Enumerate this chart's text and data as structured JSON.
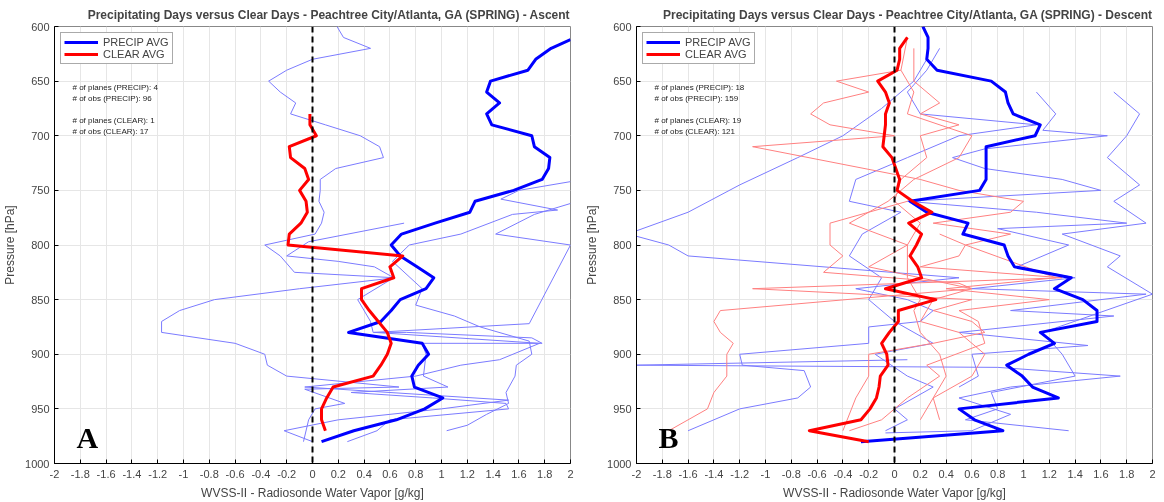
{
  "chart_data": [
    {
      "type": "line",
      "title": "Precipitating Days versus Clear Days - Peachtree City/Atlanta, GA (SPRING) - Ascent",
      "xlabel": "WVSS-II - Radiosonde Water Vapor [g/kg]",
      "ylabel": "Pressure [hPa]",
      "xlim": [
        -2,
        2
      ],
      "xticks": [
        -2,
        -1.8,
        -1.6,
        -1.4,
        -1.2,
        -1,
        -0.8,
        -0.6,
        -0.4,
        -0.2,
        0,
        0.2,
        0.4,
        0.6,
        0.8,
        1,
        1.2,
        1.4,
        1.6,
        1.8,
        2
      ],
      "ylim": [
        1000,
        600
      ],
      "yticks": [
        600,
        650,
        700,
        750,
        800,
        850,
        900,
        950,
        1000
      ],
      "grid": true,
      "legend": "top left",
      "line_style": "solid",
      "marker": "none",
      "ref_lines": [
        {
          "axis": "x",
          "value": 0,
          "color": "#000000",
          "line_style": "dashed"
        }
      ],
      "annotations": [
        "# of planes (PRECIP): 4",
        "# of obs (PRECIP): 96",
        "# of planes (CLEAR): 1",
        "# of obs (CLEAR): 17",
        "A"
      ],
      "series": [
        {
          "color": "#7b7bff",
          "x": [
            0.19,
            0.24,
            0.45,
            0,
            -0.2,
            -0.34,
            -0.25,
            -0.13,
            -0.17,
            0.1,
            0.37,
            0.52,
            0.55,
            0.18,
            0.06,
            0.06,
            0.05,
            0.09,
            0.07,
            0.02,
            -0.37,
            -0.25,
            -0.14,
            0.64,
            -0.1,
            -0.76,
            -1.03,
            -1.17,
            -1.17,
            -0.6,
            -0.37,
            -0.35,
            -0.2,
            0.67,
            -0.06,
            0.25,
            0.02,
            -0.03,
            -0.07
          ],
          "values": [
            600,
            610,
            620,
            630,
            640,
            650,
            660,
            670,
            680,
            690,
            700,
            710,
            720,
            730,
            740,
            750,
            760,
            770,
            780,
            790,
            800,
            810,
            825,
            830,
            840,
            850,
            860,
            870,
            880,
            890,
            900,
            910,
            920,
            930,
            932,
            945,
            950,
            960,
            980
          ]
        },
        {
          "color": "#7b7bff",
          "x": [
            0.71,
            -0.03,
            -0.2,
            0.2,
            0.48,
            0.63,
            0.35,
            0.45,
            0.47,
            0.73,
            1.7,
            1.78,
            0.85,
            0.88,
            0.86,
            1.05,
            0.3,
            0.93,
            1.5,
            1.52,
            0.6,
            0.5,
            0.27
          ],
          "values": [
            780,
            797,
            810,
            815,
            820,
            830,
            850,
            870,
            880,
            880,
            885,
            890,
            890,
            900,
            920,
            930,
            935,
            940,
            945,
            950,
            960,
            970,
            980
          ]
        },
        {
          "color": "#7b7bff",
          "x": [
            2,
            1.6,
            1.46,
            1.9,
            1.55,
            1.15,
            0.75,
            0.62,
            0.85,
            0.8,
            1.1,
            1.3,
            1.68,
            1.7,
            1.58,
            1.57,
            1.5,
            1.52,
            1.35,
            1.2,
            1.04
          ],
          "values": [
            742,
            750,
            758,
            768,
            772,
            790,
            800,
            815,
            840,
            855,
            865,
            875,
            888,
            900,
            910,
            920,
            935,
            945,
            955,
            965,
            970
          ]
        },
        {
          "color": "#7b7bff",
          "x": [
            2,
            1.72,
            1.42,
            2,
            1.68,
            0.48,
            1.76,
            1.45,
            1.15,
            0.8,
            -0.06,
            1.52,
            1.0,
            0.2,
            -0.22,
            0
          ],
          "values": [
            762,
            772,
            790,
            800,
            872,
            880,
            890,
            905,
            910,
            920,
            930,
            942,
            950,
            960,
            970,
            980
          ]
        },
        {
          "name": "PRECIP AVG",
          "color": "#0000ff",
          "x": [
            2,
            1.85,
            1.73,
            1.67,
            1.38,
            1.35,
            1.45,
            1.35,
            1.39,
            1.7,
            1.72,
            1.84,
            1.83,
            1.78,
            1.56,
            1.26,
            1.22,
            0.95,
            0.69,
            0.61,
            0.68,
            0.81,
            0.94,
            0.88,
            0.68,
            0.61,
            0.53,
            0.28,
            0.85,
            0.9,
            0.82,
            0.77,
            0.79,
            1.01,
            0.87,
            0.65,
            0.32,
            0.07
          ],
          "values": [
            612,
            620,
            630,
            640,
            650,
            660,
            670,
            680,
            690,
            700,
            710,
            720,
            730,
            740,
            750,
            760,
            770,
            780,
            790,
            800,
            810,
            820,
            830,
            840,
            850,
            860,
            870,
            880,
            890,
            900,
            910,
            920,
            930,
            940,
            950,
            960,
            970,
            980
          ]
        },
        {
          "name": "CLEAR AVG",
          "color": "#ff0000",
          "x": [
            -0.02,
            -0.02,
            0.03,
            -0.18,
            -0.17,
            -0.06,
            -0.03,
            -0.1,
            -0.05,
            -0.04,
            -0.09,
            -0.18,
            -0.19,
            0.7,
            0.6,
            0.63,
            0.38,
            0.38,
            0.44,
            0.51,
            0.58,
            0.61,
            0.58,
            0.53,
            0.47,
            0.16,
            0.11,
            0.07,
            0.07,
            0.1
          ],
          "values": [
            680,
            690,
            700,
            710,
            720,
            730,
            740,
            750,
            760,
            770,
            780,
            790,
            800,
            810,
            820,
            830,
            840,
            850,
            860,
            870,
            880,
            890,
            900,
            910,
            920,
            930,
            940,
            950,
            960,
            970
          ]
        }
      ]
    },
    {
      "type": "line",
      "title": "Precipitating Days versus Clear Days - Peachtree City/Atlanta, GA (SPRING) - Descent",
      "xlabel": "WVSS-II - Radiosonde Water Vapor [g/kg]",
      "ylabel": "Pressure [hPa]",
      "xlim": [
        -2,
        2
      ],
      "xticks": [
        -2,
        -1.8,
        -1.6,
        -1.4,
        -1.2,
        -1,
        -0.8,
        -0.6,
        -0.4,
        -0.2,
        0,
        0.2,
        0.4,
        0.6,
        0.8,
        1,
        1.2,
        1.4,
        1.6,
        1.8,
        2
      ],
      "ylim": [
        1000,
        600
      ],
      "yticks": [
        600,
        650,
        700,
        750,
        800,
        850,
        900,
        950,
        1000
      ],
      "grid": true,
      "legend": "top left",
      "line_style": "solid",
      "marker": "none",
      "ref_lines": [
        {
          "axis": "x",
          "value": 0,
          "color": "#000000",
          "line_style": "dashed"
        }
      ],
      "annotations": [
        "# of planes (PRECIP): 18",
        "# of obs (PRECIP): 159",
        "# of planes (CLEAR): 19",
        "# of obs (CLEAR): 121",
        "B"
      ],
      "series": [
        {
          "color": "#7b7bff",
          "x": [
            0.25,
            0.15,
            -0.1,
            -0.4,
            -0.75,
            -1.2,
            -1.6,
            -2
          ],
          "values": [
            630,
            650,
            675,
            700,
            720,
            745,
            770,
            787
          ]
        },
        {
          "color": "#7b7bff",
          "x": [
            -2,
            -1.75,
            -1.6,
            0.5,
            -0.3,
            0.1,
            0.3,
            0.2,
            -0.2,
            -0.2,
            -1.2,
            -1.18,
            -0.7,
            -0.65,
            -0.75,
            -1.2,
            -1.6
          ],
          "values": [
            792,
            800,
            810,
            830,
            840,
            850,
            860,
            870,
            875,
            890,
            900,
            910,
            915,
            930,
            940,
            950,
            970
          ]
        },
        {
          "color": "#7b7bff",
          "x": [
            0.1,
            -2,
            0.8,
            1.75,
            0.9,
            0.5,
            0.9,
            0.7,
            0.6,
            -0.07
          ],
          "values": [
            905,
            910,
            912,
            920,
            930,
            940,
            955,
            965,
            970,
            972
          ]
        },
        {
          "color": "#7b7bff",
          "x": [
            1.1,
            1.25,
            1.15,
            1.65,
            0.7,
            0.45,
            0.7,
            1.3,
            1.6,
            0.1,
            1.1,
            1.8,
            0.8,
            1.35,
            0.95,
            1.4,
            0.6,
            1.95,
            0.9,
            1.7,
            0.5,
            1.5,
            0.6,
            0.65,
            0.5
          ],
          "values": [
            660,
            680,
            695,
            700,
            712,
            720,
            730,
            740,
            750,
            760,
            770,
            780,
            785,
            800,
            820,
            830,
            840,
            845,
            860,
            865,
            880,
            892,
            900,
            920,
            930
          ]
        },
        {
          "color": "#7b7bff",
          "x": [
            1.7,
            1.9,
            1.8,
            1.65,
            1.9,
            1.7,
            1.95,
            1.3,
            1.75,
            1.65,
            2,
            1.15,
            1.3,
            1.4,
            0.75,
            0.8,
            0.55,
            1.35
          ],
          "values": [
            660,
            680,
            700,
            720,
            745,
            760,
            780,
            790,
            810,
            820,
            845,
            880,
            900,
            920,
            935,
            950,
            960,
            970
          ]
        },
        {
          "color": "#7b7bff",
          "x": [
            0.35,
            0.25,
            0.1,
            0.2,
            1.1,
            0.5,
            0.1,
            -0.3,
            -0.35,
            0.05,
            -0.25,
            -0.35,
            -0.1,
            -0.2,
            0,
            0.3,
            -0.15,
            0.1,
            0.3,
            0,
            0.1,
            -0.07
          ],
          "values": [
            620,
            640,
            660,
            680,
            690,
            700,
            720,
            740,
            760,
            770,
            790,
            810,
            830,
            850,
            870,
            890,
            900,
            920,
            930,
            950,
            960,
            970
          ]
        },
        {
          "color": "#ff8080",
          "x": [
            0.05,
            -0.45,
            -0.2,
            -0.55,
            -0.65,
            -0.5,
            0,
            -1.1,
            0.2,
            0.5,
            1,
            0.9,
            0.3,
            0.9,
            0.55,
            0.5,
            0.2,
            1.3,
            -1.1,
            0.6,
            0.3,
            0.6,
            0.7,
            0.3,
            -0.2,
            -0.2,
            -0.3,
            -0.4
          ],
          "values": [
            640,
            650,
            660,
            670,
            680,
            690,
            700,
            710,
            740,
            750,
            760,
            770,
            780,
            790,
            800,
            810,
            820,
            830,
            840,
            850,
            860,
            870,
            880,
            890,
            900,
            920,
            940,
            970
          ]
        },
        {
          "color": "#ff8080",
          "x": [
            0.1,
            -0.5,
            -0.5,
            -0.4,
            -0.55,
            0.5,
            0.6,
            -1.35,
            -1.4,
            -1.35,
            -1.25,
            -1.3,
            -1.3,
            -1.4,
            -1.45,
            -1.6,
            -1.75
          ],
          "values": [
            760,
            780,
            800,
            810,
            825,
            835,
            840,
            860,
            870,
            880,
            890,
            900,
            920,
            935,
            950,
            960,
            970
          ]
        },
        {
          "color": "#ff8080",
          "x": [
            0.15,
            0.15,
            0.35,
            0.2,
            0.5,
            0.2,
            0.25,
            0.05,
            0,
            0.2,
            0.1,
            0.1,
            0.2,
            0.15,
            0.2,
            0.35,
            0.4,
            0.3,
            0.35
          ],
          "values": [
            620,
            650,
            670,
            680,
            690,
            700,
            720,
            740,
            760,
            780,
            800,
            830,
            850,
            860,
            880,
            900,
            920,
            940,
            960
          ]
        },
        {
          "color": "#ff8080",
          "x": [
            0.1,
            0.05,
            0.15,
            0.1,
            0.6,
            0.5,
            0.15,
            -0.05,
            -0.35,
            0.1,
            -0.2,
            0.6,
            0.3,
            0.2,
            0.5,
            0.7,
            0.6,
            0.3,
            0.2
          ],
          "values": [
            610,
            640,
            660,
            680,
            700,
            720,
            740,
            760,
            780,
            800,
            820,
            840,
            850,
            870,
            880,
            900,
            920,
            940,
            960
          ]
        },
        {
          "color": "#ff8080",
          "x": [
            0.35,
            0.55,
            1.25,
            0.4,
            1.2,
            0.5,
            0.65,
            0.7,
            0.25,
            0.35,
            0.1,
            -0.1,
            -0.35
          ],
          "values": [
            790,
            800,
            830,
            840,
            850,
            860,
            870,
            890,
            910,
            920,
            940,
            960,
            970
          ]
        },
        {
          "name": "PRECIP AVG",
          "color": "#0000ff",
          "x": [
            0.22,
            0.26,
            0.26,
            0.25,
            0.33,
            0.75,
            0.86,
            0.88,
            0.92,
            1.13,
            1.09,
            0.71,
            0.71,
            0.71,
            0.71,
            0.66,
            0.12,
            0.25,
            0.57,
            0.53,
            0.85,
            0.88,
            0.93,
            1.37,
            1.24,
            1.46,
            1.57,
            1.57,
            1.13,
            1.24,
            1.04,
            0.87,
            0.99,
            1.07,
            1.27,
            0.5,
            0.62,
            0.84,
            -0.26
          ],
          "values": [
            600,
            610,
            620,
            630,
            640,
            650,
            660,
            670,
            680,
            690,
            700,
            710,
            720,
            730,
            740,
            750,
            760,
            770,
            780,
            790,
            800,
            810,
            820,
            830,
            840,
            850,
            860,
            870,
            880,
            890,
            900,
            910,
            920,
            930,
            940,
            950,
            960,
            970,
            980
          ]
        },
        {
          "name": "CLEAR AVG",
          "color": "#ff0000",
          "x": [
            0.1,
            0.04,
            0.04,
            0.02,
            -0.13,
            -0.07,
            -0.04,
            -0.07,
            -0.07,
            -0.08,
            -0.09,
            -0.02,
            0.01,
            0.04,
            0.02,
            0.14,
            0.29,
            0.11,
            0.21,
            0.17,
            0.12,
            0.18,
            0.21,
            -0.07,
            0.32,
            0.03,
            0.03,
            -0.04,
            -0.1,
            -0.06,
            -0.05,
            -0.11,
            -0.12,
            -0.14,
            -0.19,
            -0.26,
            -0.66,
            -0.2
          ],
          "values": [
            610,
            620,
            630,
            640,
            650,
            660,
            670,
            680,
            690,
            700,
            710,
            720,
            730,
            740,
            750,
            760,
            770,
            780,
            790,
            800,
            810,
            820,
            830,
            840,
            850,
            860,
            870,
            880,
            890,
            900,
            910,
            920,
            930,
            940,
            950,
            960,
            970,
            980
          ]
        }
      ]
    }
  ]
}
